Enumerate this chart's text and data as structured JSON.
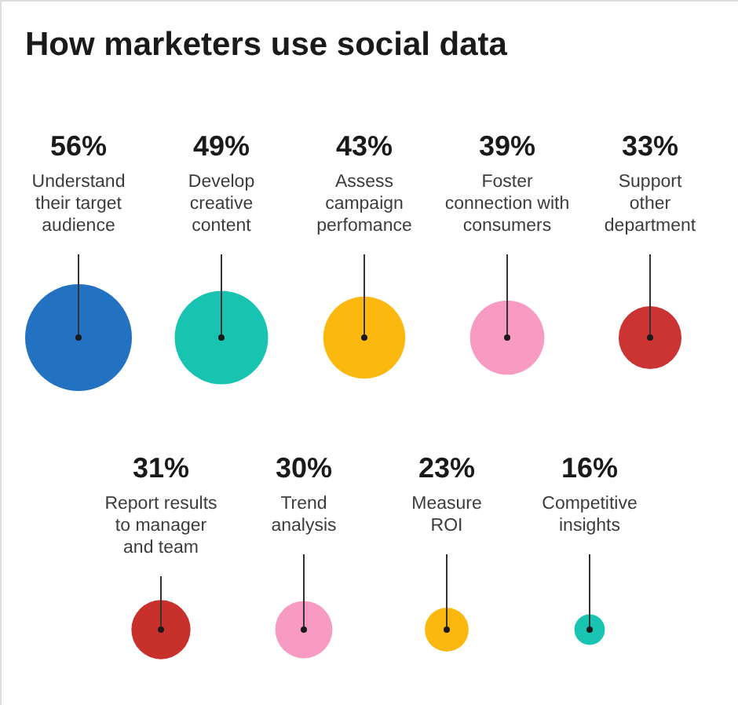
{
  "chart_data": {
    "type": "other",
    "title": "How marketers use social data",
    "categories": [
      "Understand\ntheir target\naudience",
      "Develop\ncreative\ncontent",
      "Assess\ncampaign\nperfomance",
      "Foster\nconnection with\nconsumers",
      "Support\nother\ndepartment",
      "Report results\nto manager\nand team",
      "Trend\nanalysis",
      "Measure\nROI",
      "Competitive\ninsights"
    ],
    "values": [
      56,
      49,
      43,
      39,
      33,
      31,
      30,
      23,
      16
    ],
    "value_labels": [
      "56%",
      "49%",
      "43%",
      "39%",
      "33%",
      "31%",
      "30%",
      "23%",
      "16%"
    ],
    "colors": [
      "#2372c2",
      "#18c4b1",
      "#fdb80f",
      "#f79bc3",
      "#cc3333",
      "#c8302c",
      "#f79bc3",
      "#fdb80f",
      "#18c4b1"
    ]
  }
}
